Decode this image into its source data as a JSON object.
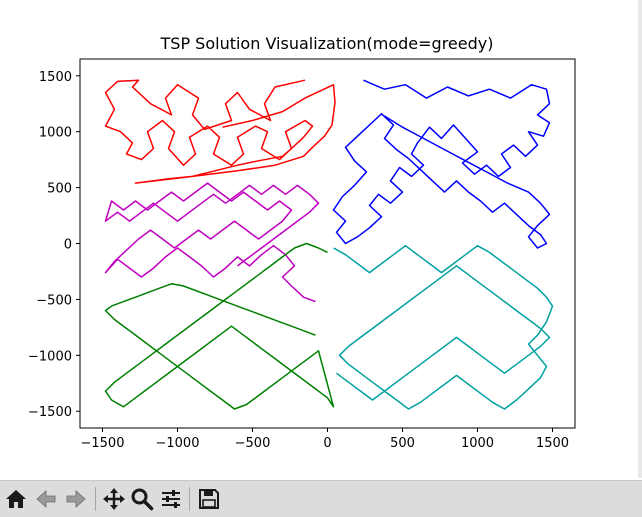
{
  "chart_data": {
    "type": "line",
    "title": "TSP Solution Visualization(mode=greedy)",
    "xlabel": "",
    "ylabel": "",
    "xlim": [
      -1650,
      1650
    ],
    "ylim": [
      -1650,
      1650
    ],
    "xticks": [
      -1500,
      -1000,
      -500,
      0,
      500,
      1000,
      1500
    ],
    "yticks": [
      -1500,
      -1000,
      -500,
      0,
      500,
      1000,
      1500
    ],
    "tick_labels_x": [
      "−1500",
      "−1000",
      "−500",
      "0",
      "500",
      "1000",
      "1500"
    ],
    "tick_labels_y": [
      "−1500",
      "−1000",
      "−500",
      "0",
      "500",
      "1000",
      "1500"
    ],
    "grid": false,
    "series": [
      {
        "color": "#ff0000",
        "x": [
          -150,
          -350,
          -420,
          -380,
          -520,
          -600,
          -680,
          -640,
          -820,
          -900,
          -860,
          -1000,
          -1080,
          -1040,
          -1180,
          -1300,
          -1260,
          -1400,
          -1480,
          -1420,
          -1480,
          -1380,
          -1300,
          -1340,
          -1240,
          -1160,
          -1200,
          -1100,
          -1020,
          -1060,
          -960,
          -880,
          -920,
          -800,
          -720,
          -760,
          -640,
          -560,
          -600,
          -480,
          -400,
          -440,
          -320,
          -240,
          -280,
          -150,
          -100,
          -160,
          -240,
          -300,
          -460,
          -600,
          -750,
          -900,
          -1050,
          -1280,
          -900,
          -600,
          -350,
          -160,
          -100,
          -20,
          30,
          50,
          40,
          -150,
          -300,
          -500,
          -700
        ],
        "y": [
          1460,
          1400,
          1250,
          1100,
          1200,
          1350,
          1250,
          1100,
          1020,
          1150,
          1300,
          1420,
          1300,
          1150,
          1250,
          1400,
          1460,
          1450,
          1350,
          1200,
          1050,
          1000,
          900,
          800,
          750,
          850,
          1000,
          1100,
          1000,
          850,
          700,
          800,
          950,
          1050,
          950,
          800,
          700,
          800,
          950,
          1050,
          1000,
          850,
          750,
          850,
          1000,
          1100,
          1050,
          950,
          850,
          780,
          740,
          700,
          650,
          600,
          580,
          540,
          600,
          650,
          700,
          780,
          860,
          960,
          1060,
          1260,
          1420,
          1300,
          1180,
          1100,
          1040
        ]
      },
      {
        "color": "#0000ff",
        "x": [
          240,
          380,
          520,
          660,
          800,
          940,
          1080,
          1220,
          1360,
          1460,
          1480,
          1400,
          1480,
          1440,
          1340,
          1400,
          1320,
          1240,
          1160,
          1220,
          1140,
          1060,
          980,
          900,
          1000,
          920,
          840,
          760,
          680,
          600,
          560,
          640,
          560,
          480,
          420,
          500,
          420,
          340,
          280,
          360,
          280,
          200,
          120,
          60,
          120,
          40,
          100,
          180,
          260,
          180,
          120,
          200,
          280,
          360,
          440,
          380,
          460,
          540,
          620,
          700,
          780,
          860,
          940,
          1020,
          1100,
          1180,
          1260,
          1340,
          1420,
          1460,
          1400,
          1340,
          1400,
          1480,
          1420,
          1340,
          1200,
          1060,
          920,
          780,
          640,
          500,
          380
        ],
        "y": [
          1460,
          1380,
          1420,
          1300,
          1400,
          1320,
          1380,
          1300,
          1420,
          1380,
          1250,
          1150,
          1080,
          960,
          1000,
          880,
          780,
          880,
          800,
          680,
          600,
          700,
          620,
          720,
          820,
          940,
          1060,
          940,
          1040,
          900,
          800,
          700,
          600,
          680,
          560,
          460,
          360,
          440,
          340,
          240,
          140,
          60,
          0,
          100,
          200,
          300,
          420,
          520,
          640,
          740,
          860,
          960,
          1060,
          1160,
          1060,
          940,
          840,
          760,
          660,
          560,
          460,
          560,
          460,
          380,
          280,
          360,
          260,
          160,
          80,
          0,
          -40,
          60,
          160,
          260,
          360,
          460,
          540,
          640,
          740,
          840,
          940,
          1040,
          1140
        ]
      },
      {
        "color": "#c000c0",
        "x": [
          -80,
          -160,
          -240,
          -300,
          -220,
          -280,
          -360,
          -440,
          -520,
          -600,
          -680,
          -760,
          -840,
          -920,
          -1000,
          -1080,
          -1160,
          -1240,
          -1320,
          -1400,
          -1480,
          -1420,
          -1340,
          -1260,
          -1180,
          -1100,
          -1020,
          -940,
          -860,
          -780,
          -700,
          -620,
          -540,
          -460,
          -380,
          -300,
          -240,
          -320,
          -400,
          -480,
          -560,
          -640,
          -720,
          -800,
          -880,
          -960,
          -1040,
          -1120,
          -1200,
          -1280,
          -1360,
          -1440,
          -1480,
          -1400,
          -1320,
          -1240,
          -1160,
          -1080,
          -1000,
          -920,
          -840,
          -760,
          -680,
          -600,
          -520,
          -440,
          -360,
          -280,
          -200,
          -120,
          -60,
          -120,
          -200,
          -280,
          -360,
          -440,
          -520,
          -600
        ],
        "y": [
          -520,
          -480,
          -380,
          -300,
          -200,
          -100,
          -20,
          -100,
          -200,
          -120,
          -220,
          -300,
          -200,
          -120,
          -40,
          -120,
          -220,
          -300,
          -220,
          -140,
          -260,
          -160,
          -60,
          40,
          120,
          40,
          -40,
          40,
          120,
          40,
          120,
          200,
          120,
          40,
          120,
          200,
          300,
          380,
          300,
          380,
          460,
          380,
          460,
          540,
          460,
          380,
          460,
          380,
          300,
          380,
          300,
          380,
          200,
          280,
          200,
          280,
          360,
          280,
          200,
          280,
          360,
          440,
          360,
          440,
          520,
          440,
          520,
          440,
          520,
          440,
          360,
          280,
          200,
          120,
          40,
          -40,
          -120,
          -200
        ]
      },
      {
        "color": "#00a0a0",
        "x": [
          40,
          120,
          200,
          280,
          360,
          440,
          520,
          600,
          680,
          760,
          840,
          920,
          1000,
          1080,
          1160,
          1240,
          1320,
          1400,
          1460,
          1500,
          1460,
          1400,
          1340,
          1400,
          1460,
          1420,
          1340,
          1260,
          1180,
          1100,
          1020,
          940,
          860,
          780,
          700,
          620,
          540,
          460,
          380,
          300,
          220,
          140,
          80,
          140,
          220,
          300,
          380,
          460,
          540,
          620,
          700,
          780,
          860,
          940,
          1020,
          1100,
          1180,
          1260,
          1340,
          1420,
          1480,
          1420,
          1340,
          1260,
          1180,
          1100,
          1020,
          940,
          860,
          780,
          700,
          620,
          540,
          460,
          380,
          300,
          220,
          140,
          60
        ],
        "y": [
          -40,
          -100,
          -180,
          -260,
          -180,
          -100,
          -20,
          -100,
          -180,
          -260,
          -180,
          -100,
          -20,
          -80,
          -160,
          -240,
          -320,
          -400,
          -480,
          -560,
          -700,
          -820,
          -900,
          -1000,
          -1100,
          -1200,
          -1300,
          -1400,
          -1480,
          -1420,
          -1340,
          -1260,
          -1180,
          -1260,
          -1340,
          -1420,
          -1480,
          -1400,
          -1320,
          -1240,
          -1160,
          -1080,
          -1000,
          -920,
          -840,
          -760,
          -680,
          -600,
          -520,
          -440,
          -360,
          -280,
          -200,
          -280,
          -360,
          -440,
          -520,
          -600,
          -680,
          -760,
          -840,
          -920,
          -1000,
          -1080,
          -1160,
          -1080,
          -1000,
          -920,
          -840,
          -920,
          -1000,
          -1080,
          -1160,
          -1240,
          -1320,
          -1400,
          -1320,
          -1240,
          -1160
        ]
      },
      {
        "color": "#008000",
        "x": [
          -80,
          -160,
          -240,
          -320,
          -400,
          -480,
          -560,
          -640,
          -720,
          -800,
          -880,
          -960,
          -1040,
          -1120,
          -1200,
          -1280,
          -1360,
          -1440,
          -1480,
          -1420,
          -1340,
          -1260,
          -1180,
          -1100,
          -1020,
          -940,
          -860,
          -780,
          -700,
          -620,
          -540,
          -460,
          -380,
          -300,
          -220,
          -140,
          -60,
          40,
          0,
          -80,
          -160,
          -240,
          -320,
          -400,
          -480,
          -560,
          -640,
          -720,
          -800,
          -880,
          -960,
          -1040,
          -1120,
          -1200,
          -1280,
          -1360,
          -1440,
          -1480,
          -1420,
          -1340,
          -1260,
          -1180,
          -1100,
          -1020,
          -940,
          -860,
          -780,
          -700,
          -620,
          -540,
          -460,
          -380,
          -300,
          -220,
          -140,
          -60,
          0
        ],
        "y": [
          -820,
          -780,
          -740,
          -700,
          -660,
          -620,
          -580,
          -540,
          -500,
          -460,
          -420,
          -380,
          -360,
          -400,
          -440,
          -480,
          -520,
          -560,
          -600,
          -680,
          -760,
          -840,
          -920,
          -1000,
          -1080,
          -1160,
          -1240,
          -1320,
          -1400,
          -1480,
          -1440,
          -1360,
          -1280,
          -1200,
          -1120,
          -1040,
          -960,
          -1460,
          -1380,
          -1300,
          -1220,
          -1140,
          -1060,
          -980,
          -900,
          -820,
          -740,
          -820,
          -900,
          -980,
          -1060,
          -1140,
          -1220,
          -1300,
          -1380,
          -1460,
          -1400,
          -1320,
          -1240,
          -1160,
          -1080,
          -1000,
          -920,
          -840,
          -760,
          -680,
          -600,
          -520,
          -440,
          -360,
          -280,
          -200,
          -120,
          -40,
          0,
          -40,
          -80
        ]
      }
    ]
  },
  "toolbar": {
    "buttons": [
      {
        "name": "home-button",
        "icon": "home-icon"
      },
      {
        "name": "back-button",
        "icon": "arrow-left-icon"
      },
      {
        "name": "forward-button",
        "icon": "arrow-right-icon"
      },
      {
        "name": "pan-button",
        "icon": "move-icon"
      },
      {
        "name": "zoom-button",
        "icon": "magnifier-icon"
      },
      {
        "name": "configure-button",
        "icon": "sliders-icon"
      },
      {
        "name": "save-button",
        "icon": "floppy-icon"
      }
    ]
  }
}
